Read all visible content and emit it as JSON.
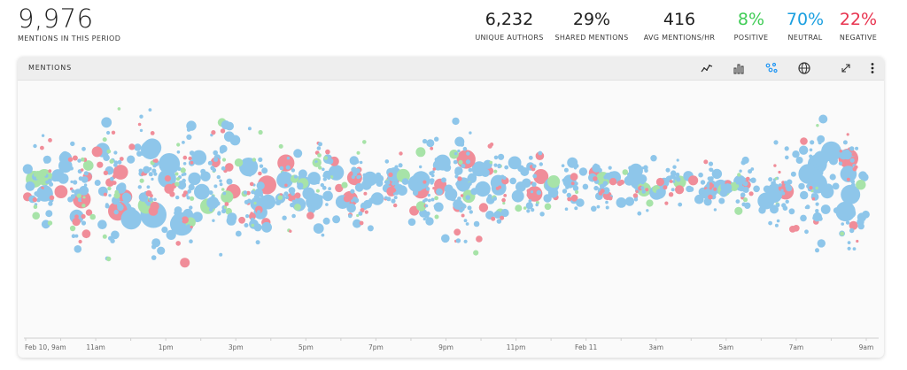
{
  "summary": {
    "mentions_value": "9,976",
    "mentions_label": "MENTIONS IN THIS PERIOD"
  },
  "stats": [
    {
      "value": "6,232",
      "label": "UNIQUE AUTHORS",
      "color": "#1d1d1d"
    },
    {
      "value": "29%",
      "label": "SHARED MENTIONS",
      "color": "#1d1d1d"
    },
    {
      "value": "416",
      "label": "AVG MENTIONS/HR",
      "color": "#1d1d1d"
    },
    {
      "value": "8%",
      "label": "POSITIVE",
      "color": "#3fcc55"
    },
    {
      "value": "70%",
      "label": "NEUTRAL",
      "color": "#1a9fe0"
    },
    {
      "value": "22%",
      "label": "NEGATIVE",
      "color": "#e8334f"
    }
  ],
  "panel": {
    "title": "MENTIONS",
    "tools": [
      "line-chart-icon",
      "bar-chart-icon",
      "bubble-chart-icon",
      "globe-icon",
      "expand-icon",
      "more-icon"
    ],
    "active_tool": "bubble-chart-icon"
  },
  "colors": {
    "neutral": "#8ec6ea",
    "positive": "#a7e3a8",
    "negative": "#f08d99",
    "active_tool": "#2196f3"
  },
  "chart_data": {
    "type": "scatter",
    "description_type": "bubble-timeline",
    "x_tick_labels": [
      "Feb 10, 9am",
      "11am",
      "1pm",
      "3pm",
      "5pm",
      "7pm",
      "9pm",
      "11pm",
      "Feb 11",
      "3am",
      "5am",
      "7am",
      "9am"
    ],
    "xlim": [
      "Feb 10, 9am",
      "Feb 11, 9am"
    ],
    "series": [
      {
        "name": "Neutral",
        "color": "#8ec6ea"
      },
      {
        "name": "Positive",
        "color": "#a7e3a8"
      },
      {
        "name": "Negative",
        "color": "#f08d99"
      }
    ],
    "relative_volume_by_hour": [
      0.45,
      0.55,
      0.85,
      0.75,
      0.9,
      0.85,
      0.7,
      0.55,
      0.5,
      0.55,
      0.45,
      0.3,
      0.95,
      0.6,
      0.45,
      0.25,
      0.3,
      0.35,
      0.3,
      0.25,
      0.25,
      0.3,
      0.7,
      0.8,
      0.75
    ]
  }
}
